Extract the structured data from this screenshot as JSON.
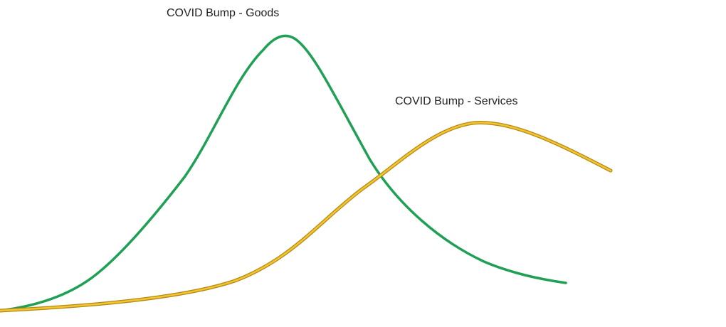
{
  "labels": [
    {
      "text": "COVID Bump - Goods"
    },
    {
      "text": "COVID Bump - Services"
    }
  ]
}
